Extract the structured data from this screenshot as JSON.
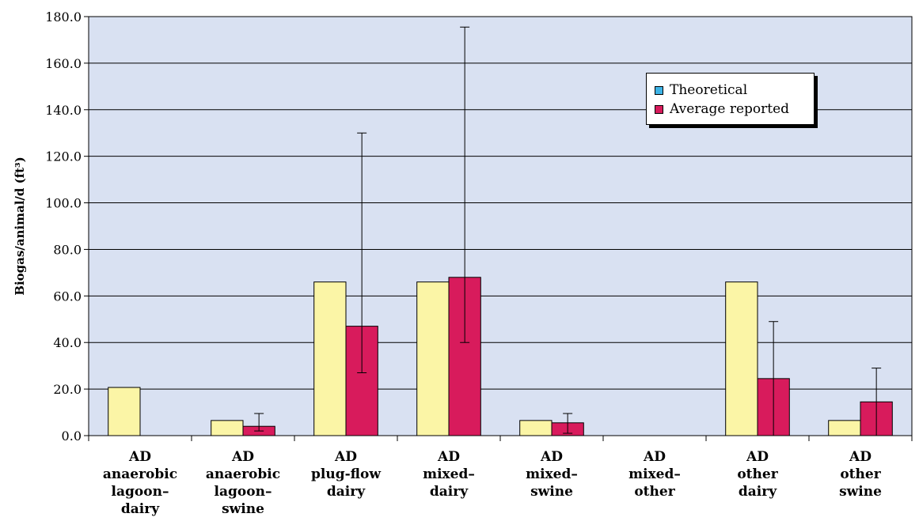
{
  "chart_data": {
    "type": "bar",
    "categories": [
      [
        "AD",
        "anaerobic",
        "lagoon–",
        "dairy"
      ],
      [
        "AD",
        "anaerobic",
        "lagoon–",
        "swine"
      ],
      [
        "AD",
        "plug-flow",
        "dairy"
      ],
      [
        "AD",
        "mixed–",
        "dairy"
      ],
      [
        "AD",
        "mixed–",
        "swine"
      ],
      [
        "AD",
        "mixed–",
        "other"
      ],
      [
        "AD",
        "other",
        "dairy"
      ],
      [
        "AD",
        "other",
        "swine"
      ]
    ],
    "ylabel": "Biogas/animal/d (ft³)",
    "ylim": [
      0,
      180
    ],
    "yticks": [
      "0.0",
      "20.0",
      "40.0",
      "60.0",
      "80.0",
      "100.0",
      "120.0",
      "140.0",
      "160.0",
      "180.0"
    ],
    "grid": true,
    "series": [
      {
        "name": "Theoretical",
        "color": "#fbf5a6",
        "values": [
          20.7,
          6.5,
          66.0,
          66.0,
          6.5,
          0,
          66.0,
          6.5
        ]
      },
      {
        "name": "Average reported",
        "color": "#d81b5c",
        "values": [
          0,
          4.0,
          47.0,
          68.0,
          5.5,
          0,
          24.5,
          14.5
        ],
        "error_low": [
          null,
          2.0,
          27.0,
          40.0,
          1.0,
          null,
          0.0,
          0.0
        ],
        "error_high": [
          null,
          9.5,
          130.0,
          175.5,
          9.5,
          null,
          49.0,
          29.0
        ]
      }
    ],
    "legend_position": "top-right",
    "plot_background": "#d9e1f2",
    "legend_swatch_colors": [
      "#3db3e6",
      "#d81b5c"
    ]
  }
}
